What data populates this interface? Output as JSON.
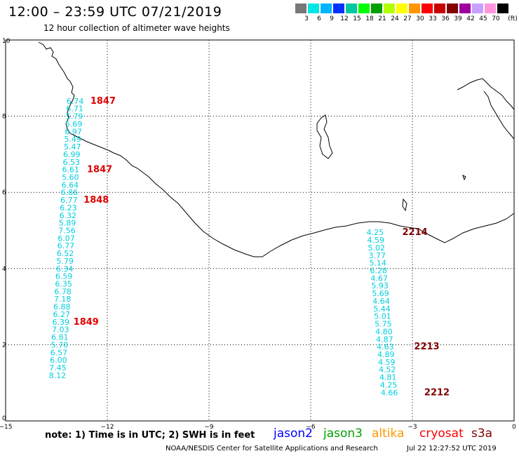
{
  "header": {
    "title": "12:00 – 23:59 UTC 07/21/2019",
    "subtitle": "12 hour collection of altimeter wave heights"
  },
  "colorbar": {
    "unit": "(ft)",
    "swatches": [
      {
        "color": "#787878",
        "label": "3"
      },
      {
        "color": "#00e6e6",
        "label": "6"
      },
      {
        "color": "#00b4ff",
        "label": "9"
      },
      {
        "color": "#0032ff",
        "label": "12"
      },
      {
        "color": "#00c8a0",
        "label": "15"
      },
      {
        "color": "#00ff00",
        "label": "18"
      },
      {
        "color": "#00a000",
        "label": "21"
      },
      {
        "color": "#b4ff00",
        "label": "24"
      },
      {
        "color": "#ffff00",
        "label": "27"
      },
      {
        "color": "#ff9600",
        "label": "30"
      },
      {
        "color": "#ff0000",
        "label": "33"
      },
      {
        "color": "#c80000",
        "label": "36"
      },
      {
        "color": "#820000",
        "label": "39"
      },
      {
        "color": "#a000a0",
        "label": "42"
      },
      {
        "color": "#c8a0ff",
        "label": "45"
      },
      {
        "color": "#ff96dc",
        "label": "70"
      },
      {
        "color": "#000000",
        "label": ""
      }
    ]
  },
  "axes": {
    "x_ticks": [
      "−15",
      "−12",
      "−9",
      "−6",
      "−3",
      "0"
    ],
    "y_ticks": [
      "0",
      "2",
      "4",
      "6",
      "8",
      "10"
    ]
  },
  "chart_data": {
    "type": "scatter",
    "xlim": [
      -15,
      0
    ],
    "ylim": [
      0,
      10
    ],
    "grid": true,
    "tracks": [
      {
        "satellite": "cryosat",
        "color": "#00d0e0",
        "points": [
          {
            "x": -12.95,
            "y": 8.4,
            "v": "6.74"
          },
          {
            "x": -12.96,
            "y": 8.2,
            "v": "6.71"
          },
          {
            "x": -12.97,
            "y": 8.0,
            "v": "5.79"
          },
          {
            "x": -12.99,
            "y": 7.8,
            "v": "5.69"
          },
          {
            "x": -13.0,
            "y": 7.6,
            "v": "6.97"
          },
          {
            "x": -13.02,
            "y": 7.4,
            "v": "5.49"
          },
          {
            "x": -13.03,
            "y": 7.2,
            "v": "5.47"
          },
          {
            "x": -13.05,
            "y": 7.0,
            "v": "6.99"
          },
          {
            "x": -13.06,
            "y": 6.8,
            "v": "6.53"
          },
          {
            "x": -13.08,
            "y": 6.6,
            "v": "6.61"
          },
          {
            "x": -13.09,
            "y": 6.4,
            "v": "5.60"
          },
          {
            "x": -13.1,
            "y": 6.2,
            "v": "6.64"
          },
          {
            "x": -13.12,
            "y": 6.0,
            "v": "6.86"
          },
          {
            "x": -13.13,
            "y": 5.8,
            "v": "6.77"
          },
          {
            "x": -13.15,
            "y": 5.6,
            "v": "6.23"
          },
          {
            "x": -13.16,
            "y": 5.4,
            "v": "6.32"
          },
          {
            "x": -13.18,
            "y": 5.2,
            "v": "5.89"
          },
          {
            "x": -13.19,
            "y": 5.0,
            "v": "7.56"
          },
          {
            "x": -13.21,
            "y": 4.8,
            "v": "6.07"
          },
          {
            "x": -13.22,
            "y": 4.6,
            "v": "6.77"
          },
          {
            "x": -13.24,
            "y": 4.4,
            "v": "6.52"
          },
          {
            "x": -13.25,
            "y": 4.2,
            "v": "5.79"
          },
          {
            "x": -13.26,
            "y": 4.0,
            "v": "6.34"
          },
          {
            "x": -13.28,
            "y": 3.8,
            "v": "6.59"
          },
          {
            "x": -13.29,
            "y": 3.6,
            "v": "6.35"
          },
          {
            "x": -13.31,
            "y": 3.4,
            "v": "6.78"
          },
          {
            "x": -13.32,
            "y": 3.2,
            "v": "7.18"
          },
          {
            "x": -13.34,
            "y": 3.0,
            "v": "6.88"
          },
          {
            "x": -13.35,
            "y": 2.8,
            "v": "6.27"
          },
          {
            "x": -13.37,
            "y": 2.6,
            "v": "6.39"
          },
          {
            "x": -13.38,
            "y": 2.4,
            "v": "7.03"
          },
          {
            "x": -13.4,
            "y": 2.2,
            "v": "6.81"
          },
          {
            "x": -13.41,
            "y": 2.0,
            "v": "5.70"
          },
          {
            "x": -13.43,
            "y": 1.8,
            "v": "6.57"
          },
          {
            "x": -13.44,
            "y": 1.6,
            "v": "6.00"
          },
          {
            "x": -13.46,
            "y": 1.4,
            "v": "7.45"
          },
          {
            "x": -13.47,
            "y": 1.2,
            "v": "8.12"
          }
        ]
      },
      {
        "satellite": "cryosat",
        "color": "#00d0e0",
        "points": [
          {
            "x": -4.1,
            "y": 4.95,
            "v": "4.25"
          },
          {
            "x": -4.08,
            "y": 4.75,
            "v": "4.59"
          },
          {
            "x": -4.06,
            "y": 4.55,
            "v": "5.02"
          },
          {
            "x": -4.04,
            "y": 4.35,
            "v": "3.77"
          },
          {
            "x": -4.02,
            "y": 4.15,
            "v": "5.14"
          },
          {
            "x": -4.0,
            "y": 3.95,
            "v": "6.28"
          },
          {
            "x": -3.98,
            "y": 3.75,
            "v": "4.67"
          },
          {
            "x": -3.96,
            "y": 3.55,
            "v": "5.93"
          },
          {
            "x": -3.94,
            "y": 3.35,
            "v": "5.69"
          },
          {
            "x": -3.92,
            "y": 3.15,
            "v": "4.64"
          },
          {
            "x": -3.9,
            "y": 2.95,
            "v": "5.44"
          },
          {
            "x": -3.88,
            "y": 2.75,
            "v": "5.01"
          },
          {
            "x": -3.86,
            "y": 2.55,
            "v": "5.75"
          },
          {
            "x": -3.84,
            "y": 2.35,
            "v": "4.80"
          },
          {
            "x": -3.82,
            "y": 2.15,
            "v": "4.87"
          },
          {
            "x": -3.8,
            "y": 1.95,
            "v": "4.63"
          },
          {
            "x": -3.78,
            "y": 1.75,
            "v": "4.89"
          },
          {
            "x": -3.76,
            "y": 1.55,
            "v": "4.59"
          },
          {
            "x": -3.74,
            "y": 1.35,
            "v": "4.52"
          },
          {
            "x": -3.72,
            "y": 1.15,
            "v": "4.81"
          },
          {
            "x": -3.7,
            "y": 0.95,
            "v": "4.25"
          },
          {
            "x": -3.68,
            "y": 0.75,
            "v": "4.66"
          }
        ]
      }
    ],
    "time_labels": [
      {
        "x": -12.5,
        "y": 8.4,
        "text": "1847",
        "color": "#e00000"
      },
      {
        "x": -12.6,
        "y": 6.6,
        "text": "1847",
        "color": "#e00000"
      },
      {
        "x": -12.7,
        "y": 5.8,
        "text": "1848",
        "color": "#e00000"
      },
      {
        "x": -13.0,
        "y": 2.6,
        "text": "1849",
        "color": "#e00000"
      },
      {
        "x": -3.3,
        "y": 4.95,
        "text": "2214",
        "color": "#800000"
      },
      {
        "x": -2.95,
        "y": 1.95,
        "text": "2213",
        "color": "#800000"
      },
      {
        "x": -2.65,
        "y": 0.75,
        "text": "2212",
        "color": "#800000"
      }
    ]
  },
  "footer": {
    "note": "note: 1) Time is in UTC; 2) SWH is in feet",
    "satellites": [
      {
        "name": "jason2",
        "color": "#0000ff"
      },
      {
        "name": "jason3",
        "color": "#00a000"
      },
      {
        "name": "altika",
        "color": "#ff9600"
      },
      {
        "name": "cryosat",
        "color": "#ff0000"
      },
      {
        "name": "s3a",
        "color": "#800000"
      }
    ],
    "credit": "NOAA/NESDIS Center for Satellite Applications and Research",
    "timestamp": "Jul 22 12:27:52 UTC 2019"
  }
}
